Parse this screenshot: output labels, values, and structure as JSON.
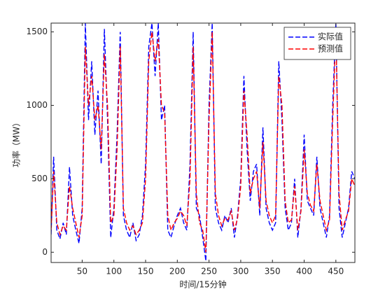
{
  "chart_data": {
    "type": "line",
    "xlabel": "时间/15分钟",
    "ylabel": "功率（MW）",
    "x": [
      1,
      5,
      10,
      15,
      20,
      25,
      30,
      35,
      40,
      45,
      50,
      55,
      60,
      65,
      70,
      75,
      80,
      85,
      90,
      95,
      100,
      105,
      110,
      115,
      120,
      125,
      130,
      135,
      140,
      145,
      150,
      155,
      160,
      165,
      170,
      175,
      180,
      185,
      190,
      195,
      200,
      205,
      210,
      215,
      220,
      225,
      230,
      235,
      240,
      245,
      250,
      255,
      260,
      265,
      270,
      275,
      280,
      285,
      290,
      295,
      300,
      305,
      310,
      315,
      320,
      325,
      330,
      335,
      340,
      345,
      350,
      355,
      360,
      365,
      370,
      375,
      380,
      385,
      390,
      395,
      400,
      405,
      410,
      415,
      420,
      425,
      430,
      435,
      440,
      445,
      450,
      455,
      460,
      465,
      470,
      475,
      480
    ],
    "series": [
      {
        "name": "实际值",
        "color": "#0000ff",
        "values": [
          120,
          650,
          150,
          90,
          200,
          120,
          580,
          250,
          150,
          60,
          300,
          1560,
          900,
          1300,
          800,
          1100,
          600,
          1520,
          900,
          100,
          300,
          800,
          1500,
          250,
          150,
          100,
          200,
          80,
          120,
          250,
          600,
          1400,
          1560,
          1200,
          1560,
          900,
          1000,
          150,
          100,
          180,
          250,
          300,
          200,
          150,
          600,
          1500,
          300,
          250,
          100,
          -60,
          1000,
          1560,
          300,
          200,
          150,
          250,
          200,
          300,
          100,
          250,
          500,
          1200,
          700,
          350,
          550,
          600,
          250,
          850,
          300,
          200,
          150,
          200,
          1300,
          900,
          300,
          150,
          200,
          500,
          100,
          300,
          800,
          350,
          300,
          250,
          650,
          300,
          200,
          100,
          250,
          1000,
          1560,
          300,
          100,
          200,
          300,
          550,
          500
        ]
      },
      {
        "name": "预测值",
        "color": "#ff0000",
        "values": [
          150,
          550,
          200,
          120,
          180,
          150,
          450,
          300,
          200,
          100,
          250,
          1400,
          1000,
          1200,
          900,
          1000,
          700,
          1350,
          1000,
          200,
          250,
          700,
          1400,
          300,
          200,
          150,
          180,
          120,
          150,
          200,
          500,
          1300,
          1500,
          1300,
          1450,
          1000,
          950,
          250,
          150,
          200,
          230,
          280,
          250,
          180,
          500,
          1400,
          400,
          200,
          150,
          0,
          900,
          1500,
          400,
          250,
          180,
          230,
          220,
          280,
          150,
          230,
          450,
          1100,
          800,
          400,
          500,
          550,
          300,
          750,
          350,
          250,
          200,
          250,
          1200,
          1000,
          350,
          200,
          220,
          450,
          150,
          280,
          700,
          400,
          320,
          280,
          600,
          350,
          250,
          150,
          220,
          900,
          1500,
          400,
          150,
          220,
          280,
          500,
          450
        ]
      }
    ],
    "xlim": [
      1,
      480
    ],
    "ylim": [
      -70,
      1560
    ],
    "xticks": [
      50,
      100,
      150,
      200,
      250,
      300,
      350,
      400,
      450
    ],
    "yticks": [
      0,
      500,
      1000,
      1500
    ],
    "line_style": "dashed",
    "legend": "upper right"
  }
}
